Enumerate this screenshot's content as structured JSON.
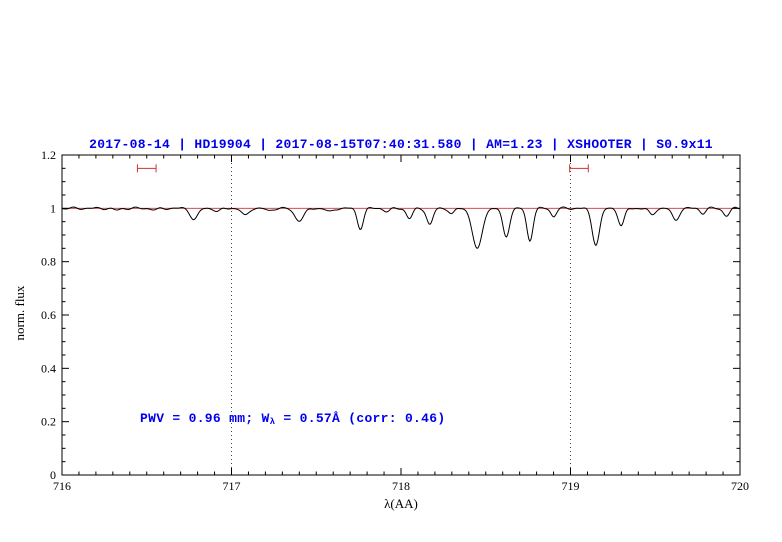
{
  "chart_data": {
    "type": "line",
    "title": "2017-08-14 | HD19904 | 2017-08-15T07:40:31.580 | AM=1.23 | XSHOOTER | S0.9x11",
    "xlabel": "λ(AA)",
    "ylabel": "norm. flux",
    "xlim": [
      716,
      720
    ],
    "ylim": [
      0,
      1.2
    ],
    "x_ticks": [
      716,
      717,
      718,
      719,
      720
    ],
    "x_tick_labels": [
      "716",
      "717",
      "718",
      "719",
      "720"
    ],
    "y_ticks": [
      0,
      0.2,
      0.4,
      0.6,
      0.8,
      1,
      1.2
    ],
    "y_tick_labels": [
      "0",
      "0.2",
      "0.4",
      "0.6",
      "0.8",
      "1",
      "1.2"
    ],
    "x_minor_step": 0.1,
    "y_minor_step": 0.05,
    "grid": false,
    "legend": null,
    "dotted_vlines": [
      717,
      719
    ],
    "continuum_line": {
      "y": 1.0
    },
    "range_markers": [
      {
        "x_center": 716.5,
        "half_width": 0.055,
        "y": 1.15
      },
      {
        "x_center": 719.05,
        "half_width": 0.055,
        "y": 1.15
      }
    ],
    "colors": {
      "title": "#0000ee",
      "annotation": "#0000ee",
      "spectrum": "#000000",
      "continuum": "#cc3333",
      "marker": "#cc3333",
      "dotted_line": "#444444",
      "frame": "#000000"
    },
    "annotation": {
      "prefix": "PWV = 0.96 mm; W",
      "sub": "λ",
      "suffix": " = 0.57Å (corr: 0.46)",
      "x": 716.46,
      "y": 0.2
    },
    "spectrum": {
      "baseline": 1.0,
      "sample_step": 0.006,
      "absorption_lines": [
        {
          "center": 716.32,
          "depth": 0.007,
          "sigma": 0.02
        },
        {
          "center": 716.55,
          "depth": 0.006,
          "sigma": 0.02
        },
        {
          "center": 716.78,
          "depth": 0.042,
          "sigma": 0.022
        },
        {
          "center": 716.92,
          "depth": 0.012,
          "sigma": 0.018
        },
        {
          "center": 717.08,
          "depth": 0.028,
          "sigma": 0.02
        },
        {
          "center": 717.22,
          "depth": 0.01,
          "sigma": 0.018
        },
        {
          "center": 717.4,
          "depth": 0.045,
          "sigma": 0.028
        },
        {
          "center": 717.58,
          "depth": 0.014,
          "sigma": 0.02
        },
        {
          "center": 717.76,
          "depth": 0.075,
          "sigma": 0.018
        },
        {
          "center": 717.92,
          "depth": 0.012,
          "sigma": 0.018
        },
        {
          "center": 718.05,
          "depth": 0.038,
          "sigma": 0.018
        },
        {
          "center": 718.17,
          "depth": 0.062,
          "sigma": 0.018
        },
        {
          "center": 718.3,
          "depth": 0.022,
          "sigma": 0.016
        },
        {
          "center": 718.45,
          "depth": 0.155,
          "sigma": 0.028
        },
        {
          "center": 718.62,
          "depth": 0.105,
          "sigma": 0.02
        },
        {
          "center": 718.76,
          "depth": 0.12,
          "sigma": 0.018
        },
        {
          "center": 718.9,
          "depth": 0.03,
          "sigma": 0.016
        },
        {
          "center": 719.15,
          "depth": 0.135,
          "sigma": 0.022
        },
        {
          "center": 719.3,
          "depth": 0.065,
          "sigma": 0.018
        },
        {
          "center": 719.48,
          "depth": 0.025,
          "sigma": 0.018
        },
        {
          "center": 719.62,
          "depth": 0.045,
          "sigma": 0.02
        },
        {
          "center": 719.78,
          "depth": 0.018,
          "sigma": 0.016
        },
        {
          "center": 719.92,
          "depth": 0.028,
          "sigma": 0.018
        }
      ]
    }
  }
}
